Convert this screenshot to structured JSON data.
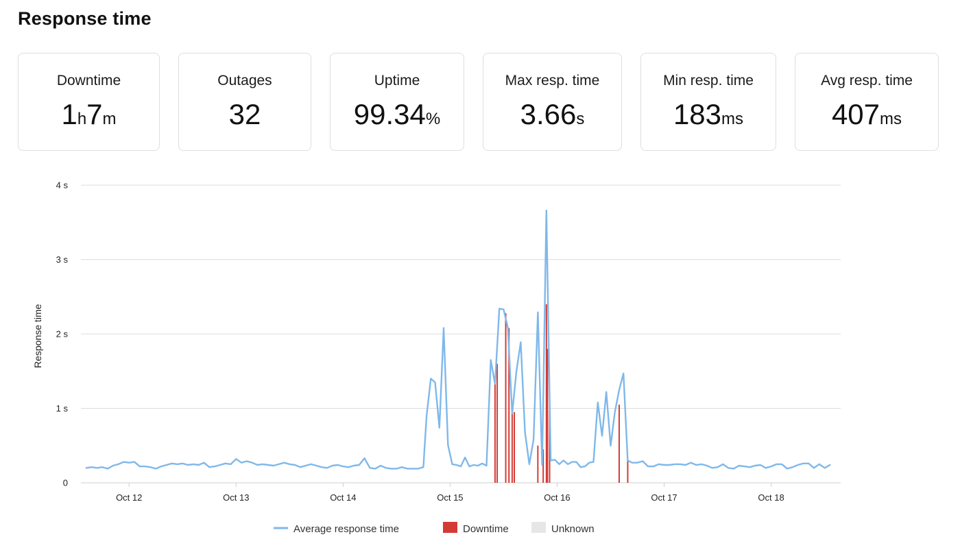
{
  "page": {
    "title": "Response time"
  },
  "stats": [
    {
      "label": "Downtime",
      "parts": [
        {
          "text": "1",
          "unit": false
        },
        {
          "text": "h",
          "unit": true
        },
        {
          "text": "7",
          "unit": false
        },
        {
          "text": "m",
          "unit": true
        }
      ]
    },
    {
      "label": "Outages",
      "parts": [
        {
          "text": "32",
          "unit": false
        }
      ]
    },
    {
      "label": "Uptime",
      "parts": [
        {
          "text": "99.34",
          "unit": false
        },
        {
          "text": "%",
          "unit": true
        }
      ]
    },
    {
      "label": "Max resp. time",
      "parts": [
        {
          "text": "3.66",
          "unit": false
        },
        {
          "text": "s",
          "unit": true
        }
      ]
    },
    {
      "label": "Min resp. time",
      "parts": [
        {
          "text": "183",
          "unit": false
        },
        {
          "text": "ms",
          "unit": true
        }
      ]
    },
    {
      "label": "Avg resp. time",
      "parts": [
        {
          "text": "407",
          "unit": false
        },
        {
          "text": "ms",
          "unit": true
        }
      ]
    }
  ],
  "colors": {
    "line": "#7fb8ea",
    "downtime": "#d43b35",
    "unknown": "#e6e6e6",
    "grid": "#dddddd",
    "card_border": "#dedede"
  },
  "chart_data": {
    "type": "line",
    "title": "",
    "xlabel": "",
    "ylabel": "Response time",
    "x_ticks": [
      "Oct 12",
      "Oct 13",
      "Oct 14",
      "Oct 15",
      "Oct 16",
      "Oct 17",
      "Oct 18"
    ],
    "x_tick_days": [
      12,
      13,
      14,
      15,
      16,
      17,
      18
    ],
    "x_range_days": [
      11.55,
      18.65
    ],
    "y_ticks": [
      {
        "value": 0,
        "label": "0"
      },
      {
        "value": 1,
        "label": "1 s"
      },
      {
        "value": 2,
        "label": "2 s"
      },
      {
        "value": 3,
        "label": "3 s"
      },
      {
        "value": 4,
        "label": "4 s"
      }
    ],
    "ylim": [
      0,
      4
    ],
    "grid": true,
    "legend_position": "bottom",
    "legend": [
      {
        "label": "Average response time",
        "kind": "line"
      },
      {
        "label": "Downtime",
        "kind": "box"
      },
      {
        "label": "Unknown",
        "kind": "box"
      }
    ],
    "series": [
      {
        "name": "Average response time",
        "points": [
          [
            11.6,
            0.2
          ],
          [
            11.65,
            0.21
          ],
          [
            11.7,
            0.2
          ],
          [
            11.75,
            0.21
          ],
          [
            11.8,
            0.19
          ],
          [
            11.85,
            0.23
          ],
          [
            11.9,
            0.25
          ],
          [
            11.95,
            0.28
          ],
          [
            12.0,
            0.27
          ],
          [
            12.05,
            0.28
          ],
          [
            12.1,
            0.22
          ],
          [
            12.15,
            0.22
          ],
          [
            12.2,
            0.21
          ],
          [
            12.25,
            0.19
          ],
          [
            12.3,
            0.22
          ],
          [
            12.35,
            0.24
          ],
          [
            12.4,
            0.26
          ],
          [
            12.45,
            0.25
          ],
          [
            12.5,
            0.26
          ],
          [
            12.55,
            0.24
          ],
          [
            12.6,
            0.25
          ],
          [
            12.65,
            0.24
          ],
          [
            12.7,
            0.27
          ],
          [
            12.75,
            0.21
          ],
          [
            12.8,
            0.22
          ],
          [
            12.85,
            0.24
          ],
          [
            12.9,
            0.26
          ],
          [
            12.95,
            0.25
          ],
          [
            13.0,
            0.32
          ],
          [
            13.05,
            0.27
          ],
          [
            13.1,
            0.29
          ],
          [
            13.15,
            0.27
          ],
          [
            13.2,
            0.24
          ],
          [
            13.25,
            0.25
          ],
          [
            13.3,
            0.24
          ],
          [
            13.35,
            0.23
          ],
          [
            13.4,
            0.25
          ],
          [
            13.45,
            0.27
          ],
          [
            13.5,
            0.25
          ],
          [
            13.55,
            0.24
          ],
          [
            13.6,
            0.21
          ],
          [
            13.65,
            0.23
          ],
          [
            13.7,
            0.25
          ],
          [
            13.75,
            0.23
          ],
          [
            13.8,
            0.21
          ],
          [
            13.85,
            0.2
          ],
          [
            13.9,
            0.23
          ],
          [
            13.95,
            0.24
          ],
          [
            14.0,
            0.22
          ],
          [
            14.05,
            0.21
          ],
          [
            14.1,
            0.23
          ],
          [
            14.15,
            0.24
          ],
          [
            14.2,
            0.33
          ],
          [
            14.25,
            0.2
          ],
          [
            14.3,
            0.19
          ],
          [
            14.35,
            0.23
          ],
          [
            14.4,
            0.2
          ],
          [
            14.45,
            0.19
          ],
          [
            14.5,
            0.19
          ],
          [
            14.55,
            0.21
          ],
          [
            14.6,
            0.19
          ],
          [
            14.65,
            0.19
          ],
          [
            14.7,
            0.19
          ],
          [
            14.75,
            0.21
          ],
          [
            14.78,
            0.9
          ],
          [
            14.82,
            1.4
          ],
          [
            14.86,
            1.35
          ],
          [
            14.9,
            0.74
          ],
          [
            14.94,
            2.08
          ],
          [
            14.98,
            0.51
          ],
          [
            15.02,
            0.25
          ],
          [
            15.06,
            0.24
          ],
          [
            15.1,
            0.22
          ],
          [
            15.14,
            0.34
          ],
          [
            15.18,
            0.22
          ],
          [
            15.22,
            0.24
          ],
          [
            15.26,
            0.23
          ],
          [
            15.3,
            0.26
          ],
          [
            15.34,
            0.23
          ],
          [
            15.38,
            1.65
          ],
          [
            15.42,
            1.33
          ],
          [
            15.46,
            2.34
          ],
          [
            15.5,
            2.33
          ],
          [
            15.54,
            2.08
          ],
          [
            15.58,
            0.93
          ],
          [
            15.62,
            1.5
          ],
          [
            15.66,
            1.89
          ],
          [
            15.7,
            0.68
          ],
          [
            15.74,
            0.25
          ],
          [
            15.78,
            0.58
          ],
          [
            15.82,
            2.29
          ],
          [
            15.86,
            0.24
          ],
          [
            15.9,
            3.66
          ],
          [
            15.94,
            0.3
          ],
          [
            15.98,
            0.31
          ],
          [
            16.02,
            0.25
          ],
          [
            16.06,
            0.3
          ],
          [
            16.1,
            0.25
          ],
          [
            16.14,
            0.28
          ],
          [
            16.18,
            0.28
          ],
          [
            16.22,
            0.21
          ],
          [
            16.26,
            0.22
          ],
          [
            16.3,
            0.27
          ],
          [
            16.34,
            0.28
          ],
          [
            16.38,
            1.08
          ],
          [
            16.42,
            0.63
          ],
          [
            16.46,
            1.22
          ],
          [
            16.5,
            0.5
          ],
          [
            16.54,
            0.95
          ],
          [
            16.58,
            1.25
          ],
          [
            16.62,
            1.47
          ],
          [
            16.66,
            0.3
          ],
          [
            16.7,
            0.27
          ],
          [
            16.75,
            0.27
          ],
          [
            16.8,
            0.29
          ],
          [
            16.85,
            0.22
          ],
          [
            16.9,
            0.22
          ],
          [
            16.95,
            0.25
          ],
          [
            17.0,
            0.24
          ],
          [
            17.05,
            0.24
          ],
          [
            17.1,
            0.25
          ],
          [
            17.15,
            0.25
          ],
          [
            17.2,
            0.24
          ],
          [
            17.25,
            0.27
          ],
          [
            17.3,
            0.24
          ],
          [
            17.35,
            0.25
          ],
          [
            17.4,
            0.23
          ],
          [
            17.45,
            0.2
          ],
          [
            17.5,
            0.21
          ],
          [
            17.55,
            0.25
          ],
          [
            17.6,
            0.2
          ],
          [
            17.65,
            0.19
          ],
          [
            17.7,
            0.23
          ],
          [
            17.75,
            0.22
          ],
          [
            17.8,
            0.21
          ],
          [
            17.85,
            0.23
          ],
          [
            17.9,
            0.24
          ],
          [
            17.95,
            0.2
          ],
          [
            18.0,
            0.22
          ],
          [
            18.05,
            0.25
          ],
          [
            18.1,
            0.25
          ],
          [
            18.15,
            0.19
          ],
          [
            18.2,
            0.21
          ],
          [
            18.25,
            0.24
          ],
          [
            18.3,
            0.26
          ],
          [
            18.35,
            0.26
          ],
          [
            18.4,
            0.2
          ],
          [
            18.45,
            0.25
          ],
          [
            18.5,
            0.2
          ],
          [
            18.55,
            0.24
          ]
        ]
      }
    ],
    "downtime": [
      {
        "day": 15.42,
        "top": 1.33
      },
      {
        "day": 15.44,
        "top": 1.6
      },
      {
        "day": 15.52,
        "top": 2.28
      },
      {
        "day": 15.55,
        "top": 2.08
      },
      {
        "day": 15.58,
        "top": 1.0
      },
      {
        "day": 15.6,
        "top": 0.95
      },
      {
        "day": 15.82,
        "top": 0.5
      },
      {
        "day": 15.87,
        "top": 0.45
      },
      {
        "day": 15.9,
        "top": 2.4
      },
      {
        "day": 15.91,
        "top": 1.8
      },
      {
        "day": 15.93,
        "top": 1.2
      },
      {
        "day": 16.58,
        "top": 1.05
      },
      {
        "day": 16.66,
        "top": 0.3
      }
    ]
  }
}
